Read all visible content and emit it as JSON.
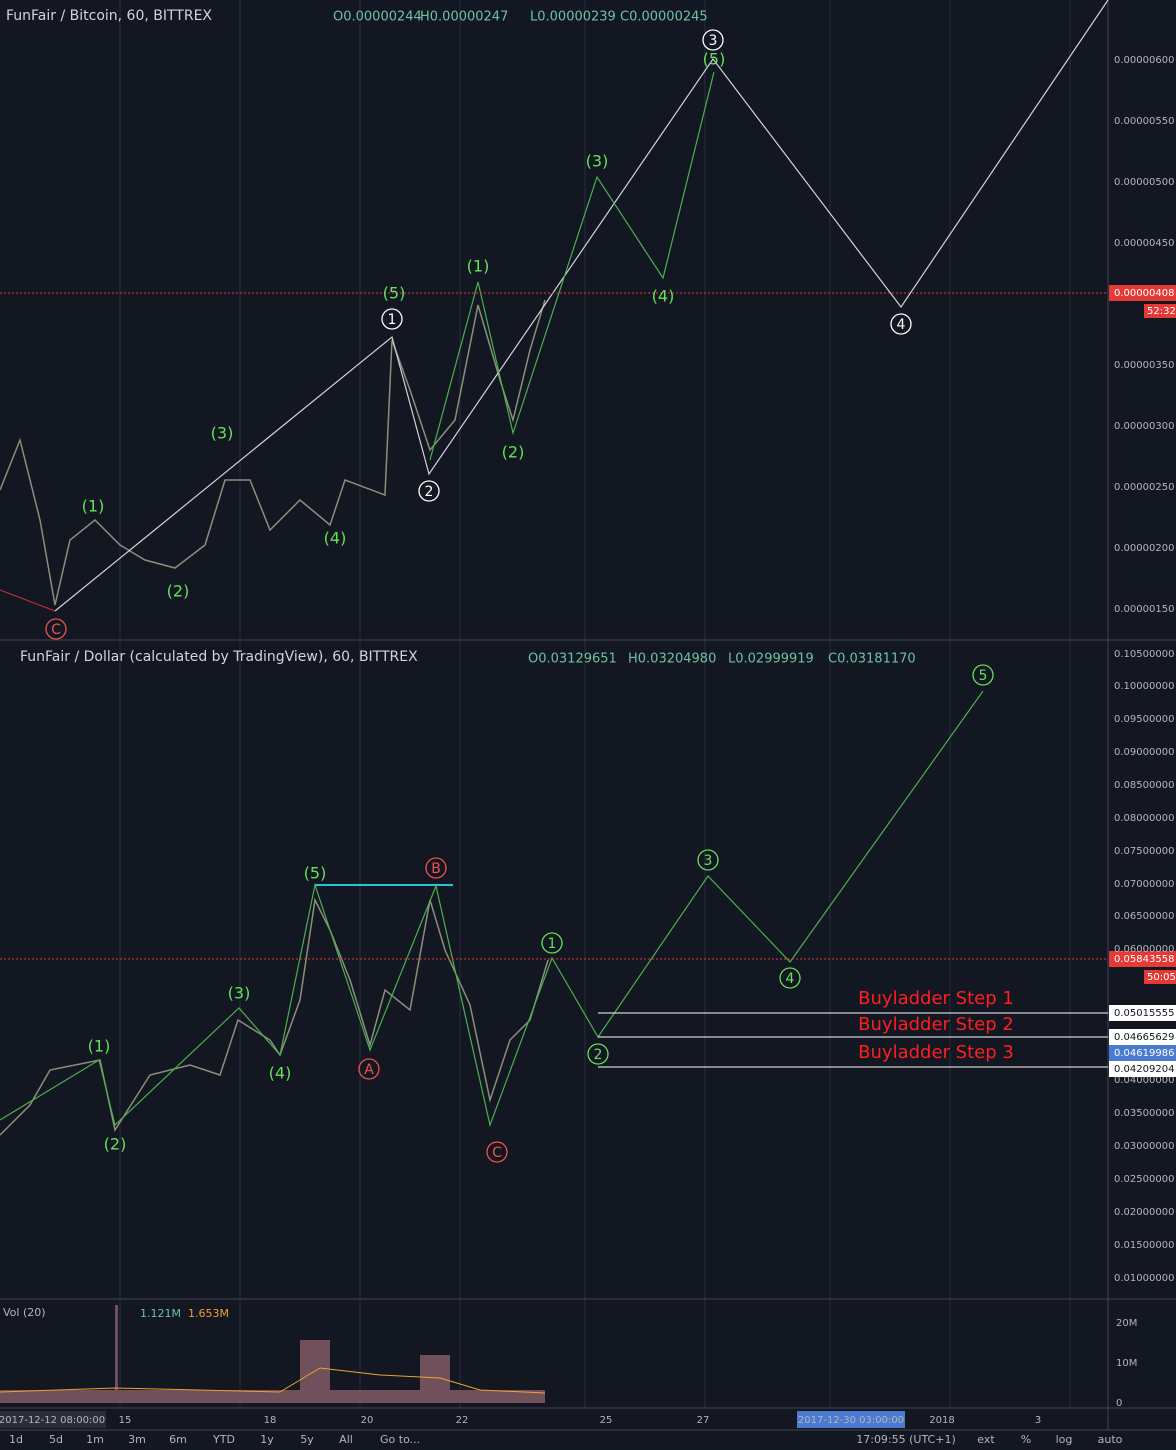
{
  "top_pane": {
    "header": {
      "symbol": "FunFair / Bitcoin, 60, BITTREX",
      "open": "O0.00000244",
      "high": "H0.00000247",
      "low": "L0.00000239",
      "close": "C0.00000245"
    },
    "price_axis": [
      "0.00000600",
      "0.00000550",
      "0.00000500",
      "0.00000450",
      "0.00000350",
      "0.00000300",
      "0.00000250",
      "0.00000200",
      "0.00000150"
    ],
    "last_price": "0.00000408",
    "countdown": "52:32",
    "waves": [
      "(1)",
      "(2)",
      "(3)",
      "(4)",
      "(5)",
      "(1)",
      "(2)",
      "(3)",
      "(4)",
      "(5)",
      "1",
      "2",
      "3",
      "4",
      "C"
    ]
  },
  "bottom_pane": {
    "header": {
      "symbol": "FunFair / Dollar (calculated by TradingView), 60, BITTREX",
      "open": "O0.03129651",
      "high": "H0.03204980",
      "low": "L0.02999919",
      "close": "C0.03181170"
    },
    "price_axis": [
      "0.10500000",
      "0.10000000",
      "0.09500000",
      "0.09000000",
      "0.08500000",
      "0.08000000",
      "0.07500000",
      "0.07000000",
      "0.06500000",
      "0.06000000",
      "0.04000000",
      "0.03500000",
      "0.03000000",
      "0.02500000",
      "0.02000000",
      "0.01500000",
      "0.01000000"
    ],
    "last_price": "0.05843558",
    "countdown": "50:05",
    "waves": [
      "(1)",
      "(2)",
      "(3)",
      "(4)",
      "(5)",
      "A",
      "B",
      "C",
      "1",
      "2",
      "3",
      "4",
      "5"
    ],
    "buyladder": [
      {
        "label": "Buyladder Step 1",
        "price": "0.05015555"
      },
      {
        "label": "Buyladder Step 2",
        "price": "0.04665629"
      },
      {
        "label": "Buyladder Step 3",
        "price": "0.04209204"
      }
    ],
    "marker_price": "0.04619986"
  },
  "volume_pane": {
    "header": {
      "name": "Vol (20)",
      "volume": "1.121M",
      "average": "1.653M"
    },
    "axis": [
      "20M",
      "10M",
      "0"
    ]
  },
  "time_axis": [
    "2017-12-12 08:00:00",
    "15",
    "18",
    "20",
    "22",
    "25",
    "27",
    "2017-12-30 03:00:00",
    "2018",
    "3"
  ],
  "toolbar": {
    "ranges": [
      "1d",
      "5d",
      "1m",
      "3m",
      "6m",
      "YTD",
      "1y",
      "5y",
      "All"
    ],
    "goto": "Go to...",
    "clock": "17:09:55 (UTC+1)",
    "options": [
      "ext",
      "%",
      "log",
      "auto"
    ]
  }
}
